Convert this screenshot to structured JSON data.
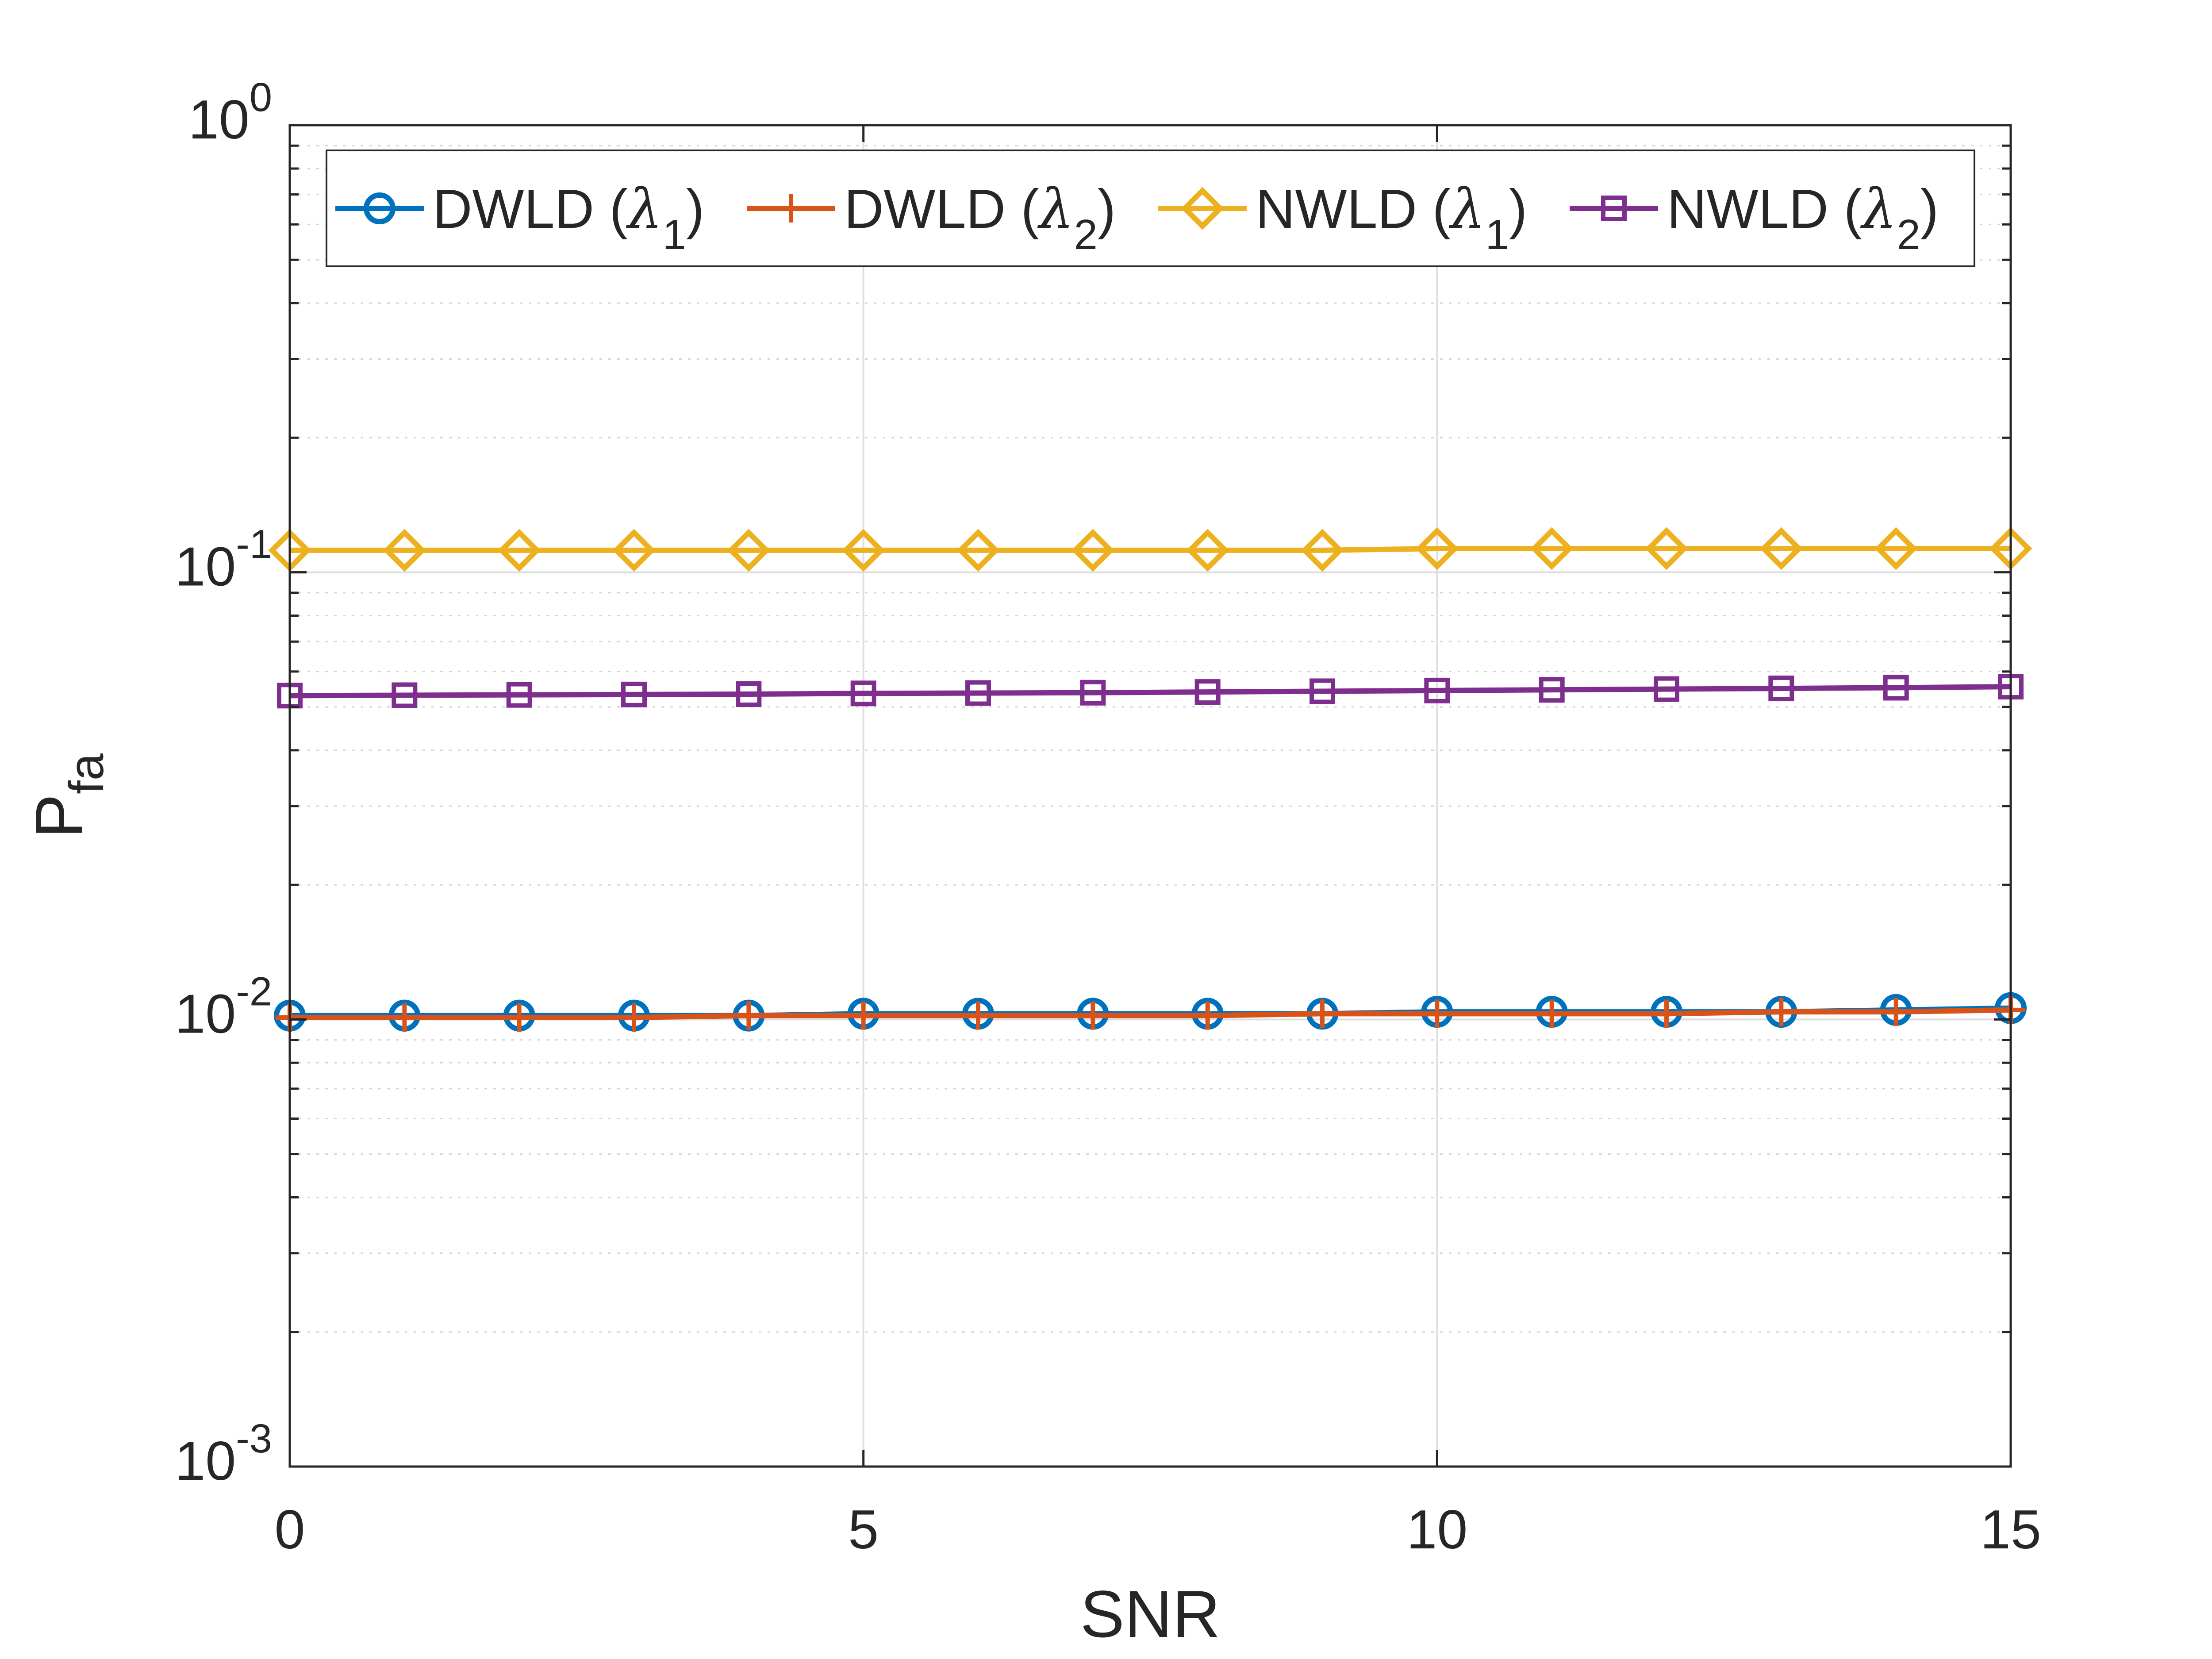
{
  "chart_data": {
    "type": "line",
    "title": "",
    "xlabel": "SNR",
    "ylabel": {
      "main": "P",
      "sub": "fa"
    },
    "xlim": [
      0,
      15
    ],
    "ylim": [
      0.001,
      1
    ],
    "yscale": "log",
    "grid": true,
    "legend_position": "top",
    "legend_columns": 4,
    "x_ticks": [
      0,
      5,
      10,
      15
    ],
    "x_tick_labels": [
      "0",
      "5",
      "10",
      "15"
    ],
    "y_ticks": [
      {
        "value": 0.001,
        "base": "10",
        "exp": "-3"
      },
      {
        "value": 0.01,
        "base": "10",
        "exp": "-2"
      },
      {
        "value": 0.1,
        "base": "10",
        "exp": "-1"
      },
      {
        "value": 1,
        "base": "10",
        "exp": "0"
      }
    ],
    "x": [
      0,
      1,
      2,
      3,
      4,
      5,
      6,
      7,
      8,
      9,
      10,
      11,
      12,
      13,
      14,
      15
    ],
    "series": [
      {
        "name": "DWLD (λ1)",
        "label_main": "DWLD (",
        "label_greek": "λ",
        "label_sub": "1",
        "label_end": ")",
        "color": "#0072BD",
        "marker": "circle",
        "values": [
          0.0102,
          0.0102,
          0.0102,
          0.0102,
          0.0102,
          0.0103,
          0.0103,
          0.0103,
          0.0103,
          0.0103,
          0.0104,
          0.0104,
          0.0104,
          0.0104,
          0.0105,
          0.0106
        ]
      },
      {
        "name": "DWLD (λ2)",
        "label_main": "DWLD (",
        "label_greek": "λ",
        "label_sub": "2",
        "label_end": ")",
        "color": "#D95319",
        "marker": "plus",
        "values": [
          0.0101,
          0.0101,
          0.0101,
          0.0101,
          0.0102,
          0.0102,
          0.0102,
          0.0102,
          0.0102,
          0.0103,
          0.0103,
          0.0103,
          0.0103,
          0.0104,
          0.0104,
          0.0105
        ]
      },
      {
        "name": "NWLD (λ1)",
        "label_main": "NWLD (",
        "label_greek": "λ",
        "label_sub": "1",
        "label_end": ")",
        "color": "#EDB120",
        "marker": "diamond",
        "values": [
          0.112,
          0.112,
          0.112,
          0.112,
          0.112,
          0.112,
          0.112,
          0.112,
          0.112,
          0.112,
          0.113,
          0.113,
          0.113,
          0.113,
          0.113,
          0.113
        ]
      },
      {
        "name": "NWLD (λ2)",
        "label_main": "NWLD (",
        "label_greek": "λ",
        "label_sub": "2",
        "label_end": ")",
        "color": "#7E2F8E",
        "marker": "square",
        "values": [
          0.053,
          0.0531,
          0.0532,
          0.0533,
          0.0534,
          0.0536,
          0.0537,
          0.0538,
          0.054,
          0.0542,
          0.0544,
          0.0546,
          0.0548,
          0.055,
          0.0552,
          0.0555
        ]
      }
    ]
  }
}
